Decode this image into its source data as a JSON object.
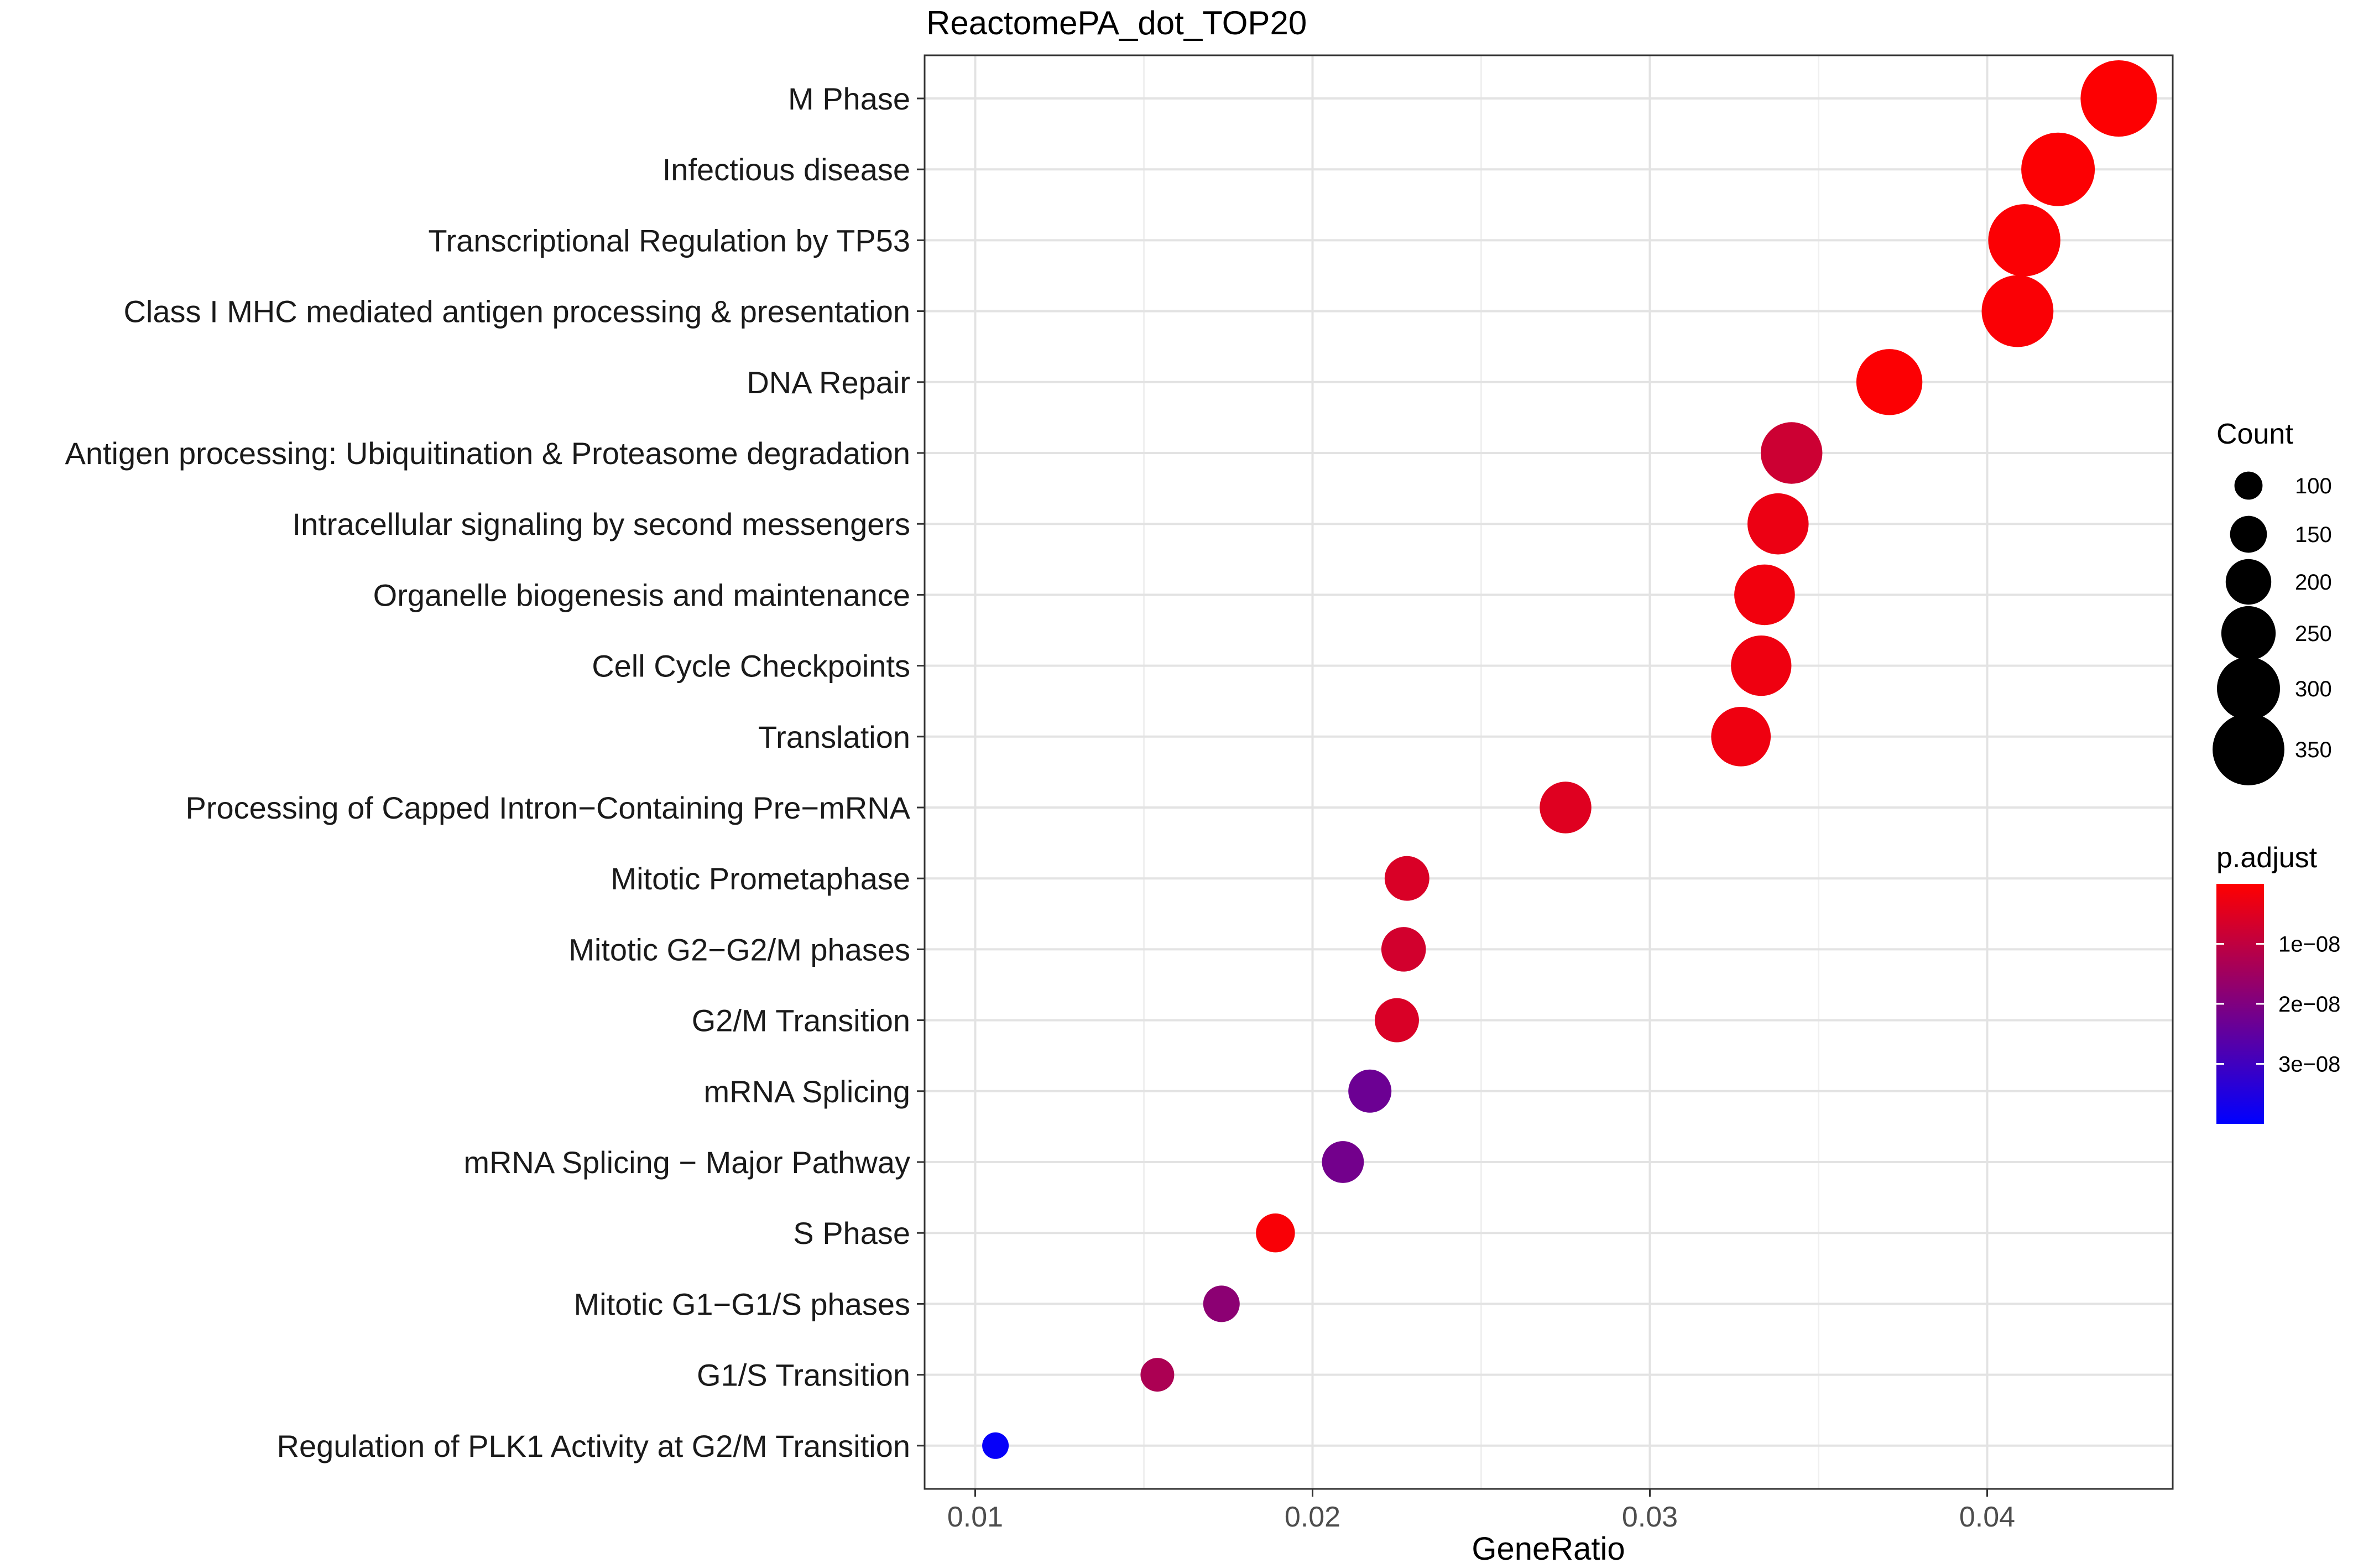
{
  "chart_data": {
    "type": "scatter",
    "title": "ReactomePA_dot_TOP20",
    "xlabel": "GeneRatio",
    "ylabel": "",
    "xlim": [
      0.0085,
      0.0455
    ],
    "xticks": [
      "0.01",
      "0.02",
      "0.03",
      "0.04"
    ],
    "grid": true,
    "legend_placement": "right",
    "categories": [
      "M Phase",
      "Infectious disease",
      "Transcriptional Regulation by TP53",
      "Class I MHC mediated antigen processing & presentation",
      "DNA Repair",
      "Antigen processing: Ubiquitination & Proteasome degradation",
      "Intracellular signaling by second messengers",
      "Organelle biogenesis and maintenance",
      "Cell Cycle Checkpoints",
      "Translation",
      "Processing of Capped Intron−Containing Pre−mRNA",
      "Mitotic Prometaphase",
      "Mitotic G2−G2/M phases",
      "G2/M Transition",
      "mRNA Splicing",
      "mRNA Splicing − Major Pathway",
      "S Phase",
      "Mitotic G1−G1/S phases",
      "G1/S Transition",
      "Regulation of PLK1 Activity at G2/M Transition"
    ],
    "points": [
      {
        "x": 0.0439,
        "count": 376,
        "p_adjust": 3e-10
      },
      {
        "x": 0.0421,
        "count": 360,
        "p_adjust": 5e-10
      },
      {
        "x": 0.0411,
        "count": 352,
        "p_adjust": 6e-10
      },
      {
        "x": 0.0409,
        "count": 350,
        "p_adjust": 8e-10
      },
      {
        "x": 0.0371,
        "count": 317,
        "p_adjust": 4e-10
      },
      {
        "x": 0.0342,
        "count": 292,
        "p_adjust": 8e-09
      },
      {
        "x": 0.0338,
        "count": 289,
        "p_adjust": 3e-09
      },
      {
        "x": 0.0334,
        "count": 286,
        "p_adjust": 2e-09
      },
      {
        "x": 0.0333,
        "count": 285,
        "p_adjust": 2.5e-09
      },
      {
        "x": 0.0327,
        "count": 280,
        "p_adjust": 2.5e-09
      },
      {
        "x": 0.0275,
        "count": 235,
        "p_adjust": 5e-09
      },
      {
        "x": 0.0228,
        "count": 195,
        "p_adjust": 6e-09
      },
      {
        "x": 0.0227,
        "count": 194,
        "p_adjust": 7e-09
      },
      {
        "x": 0.0225,
        "count": 192,
        "p_adjust": 6e-09
      },
      {
        "x": 0.0217,
        "count": 186,
        "p_adjust": 2.3e-08
      },
      {
        "x": 0.0209,
        "count": 179,
        "p_adjust": 2.2e-08
      },
      {
        "x": 0.0189,
        "count": 162,
        "p_adjust": 1e-09
      },
      {
        "x": 0.0173,
        "count": 148,
        "p_adjust": 1.8e-08
      },
      {
        "x": 0.0154,
        "count": 132,
        "p_adjust": 1.3e-08
      },
      {
        "x": 0.0106,
        "count": 91,
        "p_adjust": 3.9e-08
      }
    ],
    "size_legend": {
      "title": "Count",
      "labels": [
        "100",
        "150",
        "200",
        "250",
        "300",
        "350"
      ],
      "values": [
        100,
        150,
        200,
        250,
        300,
        350
      ]
    },
    "color_legend": {
      "title": "p.adjust",
      "labels": [
        "1e−08",
        "2e−08",
        "3e−08"
      ],
      "values": [
        1e-08,
        2e-08,
        3e-08
      ],
      "range": [
        0,
        4e-08
      ],
      "low_color": "#ff0000",
      "high_color": "#0000ff"
    }
  }
}
